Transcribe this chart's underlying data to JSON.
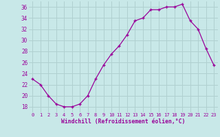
{
  "x": [
    0,
    1,
    2,
    3,
    4,
    5,
    6,
    7,
    8,
    9,
    10,
    11,
    12,
    13,
    14,
    15,
    16,
    17,
    18,
    19,
    20,
    21,
    22,
    23
  ],
  "y": [
    23,
    22,
    20,
    18.5,
    18,
    18,
    18.5,
    20,
    23,
    25.5,
    27.5,
    29,
    31,
    33.5,
    34,
    35.5,
    35.5,
    36,
    36,
    36.5,
    33.5,
    32,
    28.5,
    25.5
  ],
  "line_color": "#990099",
  "marker": "+",
  "bg_color": "#c8e8e8",
  "grid_color": "#b0d0d0",
  "xlabel": "Windchill (Refroidissement éolien,°C)",
  "xlabel_color": "#990099",
  "tick_color": "#990099",
  "ylim": [
    17,
    37
  ],
  "xlim": [
    -0.5,
    23.5
  ],
  "yticks": [
    18,
    20,
    22,
    24,
    26,
    28,
    30,
    32,
    34,
    36
  ],
  "xticks": [
    0,
    1,
    2,
    3,
    4,
    5,
    6,
    7,
    8,
    9,
    10,
    11,
    12,
    13,
    14,
    15,
    16,
    17,
    18,
    19,
    20,
    21,
    22,
    23
  ]
}
